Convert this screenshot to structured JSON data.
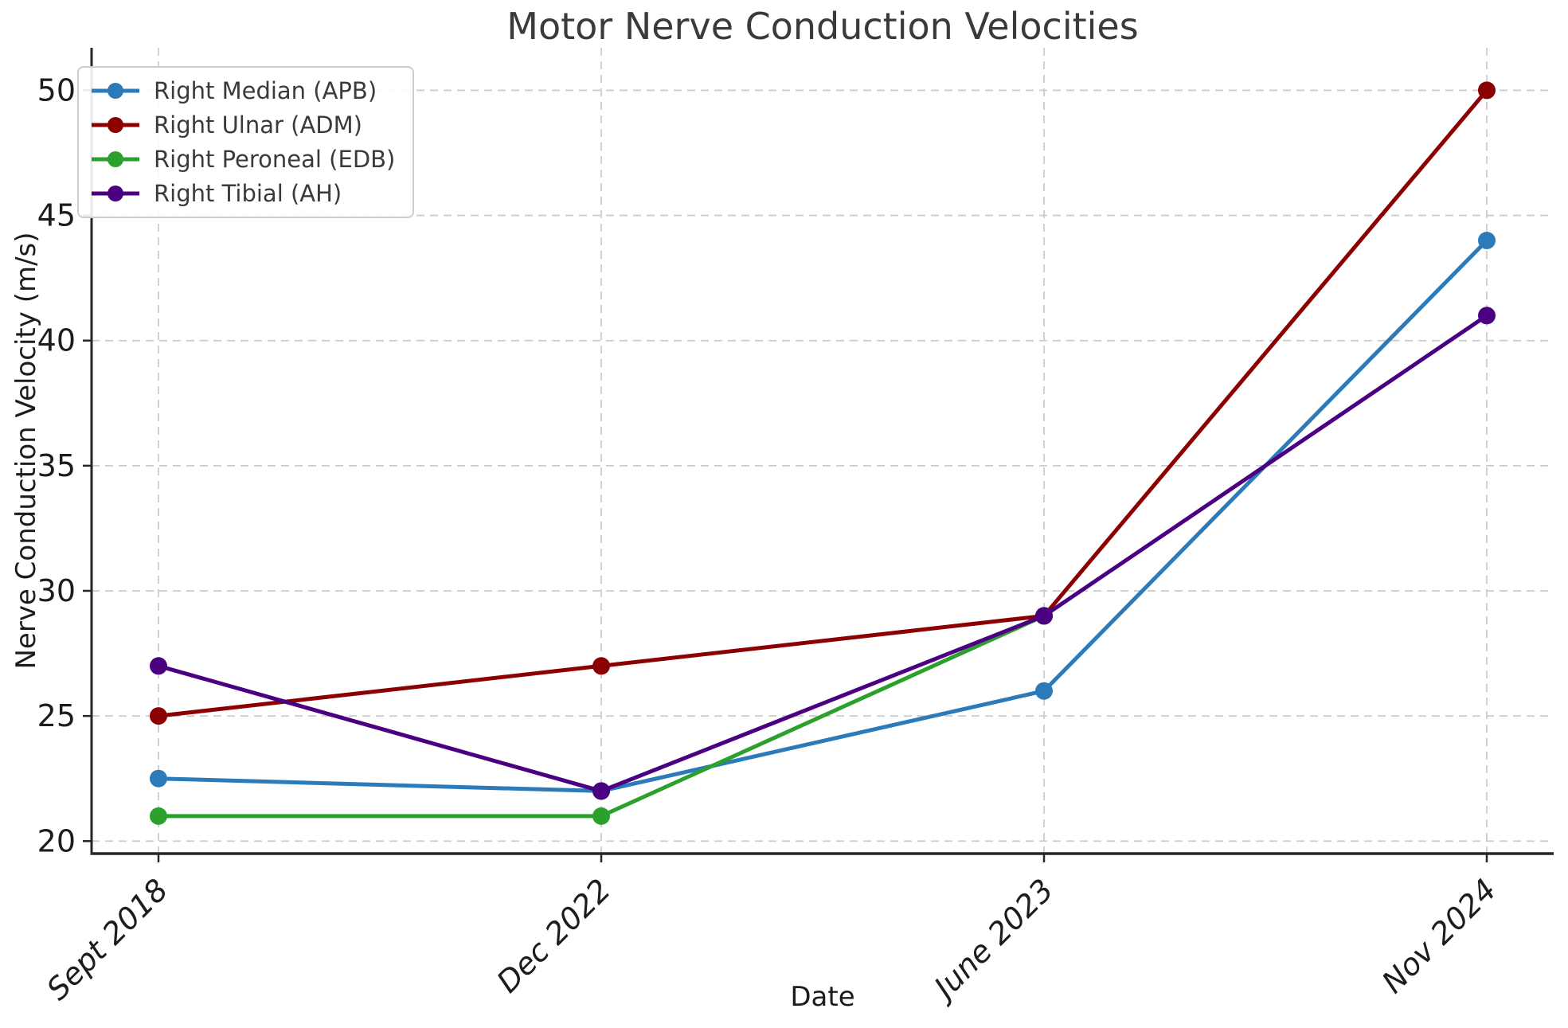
{
  "chart_data": {
    "type": "line",
    "title": "Motor Nerve Conduction Velocities",
    "xlabel": "Date",
    "ylabel": "Nerve Conduction Velocity (m/s)",
    "categories": [
      "Sept 2018",
      "Dec 2022",
      "June 2023",
      "Nov 2024"
    ],
    "series": [
      {
        "name": "Right Median (APB)",
        "color": "#2b7bba",
        "values": [
          22.5,
          22,
          26,
          44
        ]
      },
      {
        "name": "Right Ulnar (ADM)",
        "color": "#8b0000",
        "values": [
          25,
          27,
          29,
          50
        ]
      },
      {
        "name": "Right Peroneal (EDB)",
        "color": "#2ca02c",
        "values": [
          21,
          21,
          29,
          null
        ]
      },
      {
        "name": "Right Tibial (AH)",
        "color": "#4b0082",
        "values": [
          27,
          22,
          29,
          41
        ]
      }
    ],
    "yticks": [
      20,
      25,
      30,
      35,
      40,
      45,
      50
    ],
    "ylim": [
      19.5,
      51.7
    ],
    "grid": true,
    "gridline_color": "#cccccc",
    "axis_color": "#262626",
    "legend_position": "upper left"
  }
}
